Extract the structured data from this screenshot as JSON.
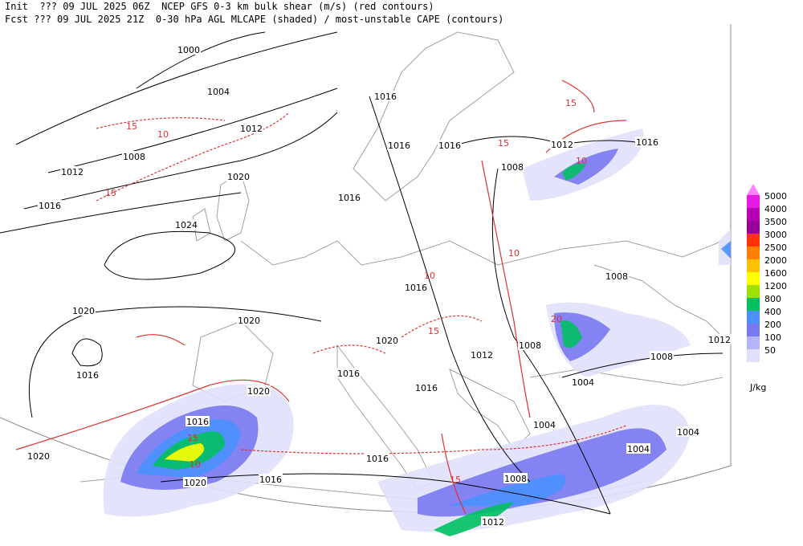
{
  "header": {
    "line1": "Init  ??? 09 JUL 2025 06Z  NCEP GFS 0-3 km bulk shear (m/s) (red contours)",
    "line2": "Fcst ??? 09 JUL 2025 21Z  0-30 hPa AGL MLCAPE (shaded) / most-unstable CAPE (contours)"
  },
  "legend": {
    "levels": [
      5000,
      4000,
      3500,
      3000,
      2500,
      2000,
      1600,
      1200,
      800,
      400,
      200,
      100,
      50
    ],
    "colors": [
      "#e619e6",
      "#b300b3",
      "#990099",
      "#ff3300",
      "#ff8000",
      "#ffc000",
      "#ffff00",
      "#a0e000",
      "#00c060",
      "#4a90ff",
      "#7878f0",
      "#b4b4f8",
      "#e0e0fc"
    ],
    "unit": "J/kg"
  },
  "isobar_labels": [
    1000,
    1004,
    1012,
    1008,
    1012,
    1016,
    1020,
    1024,
    1016,
    1016,
    1016,
    1016,
    1012,
    1016,
    1008,
    1008,
    1016,
    1020,
    1020,
    1016,
    1020,
    1012,
    1008,
    1008,
    1012,
    1016,
    1016,
    1004,
    1020,
    1016,
    1004,
    1004,
    1004,
    1020,
    1016,
    1016,
    1020,
    1008,
    1012
  ],
  "shear_labels": [
    15,
    10,
    15,
    15,
    10,
    15,
    15,
    10,
    10,
    15,
    20,
    15,
    10
  ]
}
